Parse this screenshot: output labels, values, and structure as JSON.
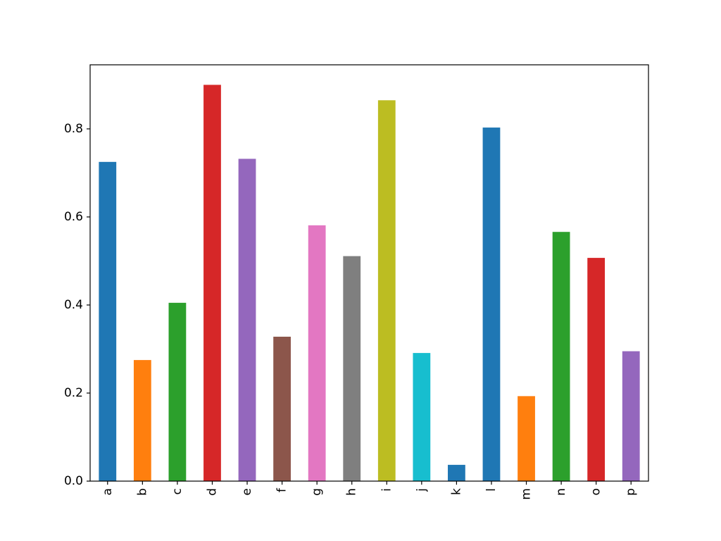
{
  "chart_data": {
    "type": "bar",
    "title": "",
    "xlabel": "",
    "ylabel": "",
    "categories": [
      "a",
      "b",
      "c",
      "d",
      "e",
      "f",
      "g",
      "h",
      "i",
      "j",
      "k",
      "l",
      "m",
      "n",
      "o",
      "p"
    ],
    "values": [
      0.725,
      0.275,
      0.405,
      0.9,
      0.732,
      0.328,
      0.581,
      0.511,
      0.865,
      0.291,
      0.037,
      0.803,
      0.193,
      0.566,
      0.507,
      0.295
    ],
    "colors": [
      "#1f77b4",
      "#ff7f0e",
      "#2ca02c",
      "#d62728",
      "#9467bd",
      "#8c564b",
      "#e377c2",
      "#7f7f7f",
      "#bcbd22",
      "#17becf",
      "#1f77b4",
      "#1f77b4",
      "#ff7f0e",
      "#2ca02c",
      "#d62728",
      "#9467bd"
    ],
    "ylim": [
      0,
      0.9455
    ],
    "yticks": [
      0.0,
      0.2,
      0.4,
      0.6,
      0.8
    ],
    "ytick_labels": [
      "0.0",
      "0.2",
      "0.4",
      "0.6",
      "0.8"
    ],
    "x_tick_rotation": "vertical",
    "grid": false,
    "legend": "none"
  }
}
